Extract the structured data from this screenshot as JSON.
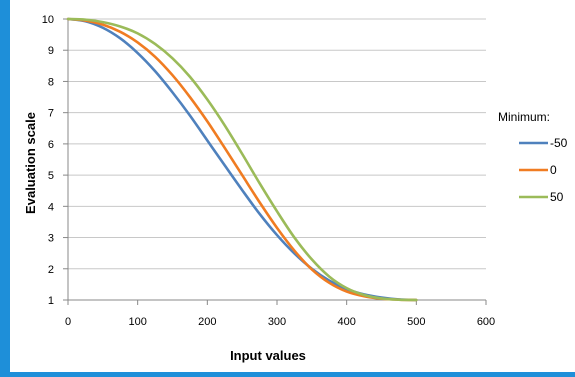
{
  "chart_data": {
    "type": "line",
    "title": "",
    "xlabel": "Input values",
    "ylabel": "Evaluation scale",
    "xlim": [
      0,
      600
    ],
    "ylim": [
      1,
      10
    ],
    "x_ticks": [
      "0",
      "100",
      "200",
      "300",
      "400",
      "500",
      "600"
    ],
    "y_ticks": [
      "1",
      "2",
      "3",
      "4",
      "5",
      "6",
      "7",
      "8",
      "9",
      "10"
    ],
    "grid": "horizontal",
    "legend": {
      "title": "Minimum:",
      "placement": "right"
    },
    "series": [
      {
        "name": "-50",
        "color": "#4f81bd",
        "x": [
          0,
          25,
          50,
          75,
          100,
          125,
          150,
          175,
          200,
          225,
          250,
          275,
          300,
          325,
          350,
          375,
          400,
          425,
          450,
          475,
          500
        ],
        "y": [
          10.0,
          9.93,
          9.72,
          9.38,
          8.91,
          8.33,
          7.65,
          6.91,
          6.11,
          5.31,
          4.52,
          3.76,
          3.08,
          2.49,
          2.0,
          1.62,
          1.35,
          1.18,
          1.08,
          1.02,
          1.0
        ]
      },
      {
        "name": "0",
        "color": "#f07c22",
        "x": [
          0,
          25,
          50,
          75,
          100,
          125,
          150,
          175,
          200,
          225,
          250,
          275,
          300,
          325,
          350,
          375,
          400,
          425,
          450,
          475,
          500
        ],
        "y": [
          10.0,
          9.95,
          9.82,
          9.59,
          9.25,
          8.79,
          8.2,
          7.5,
          6.72,
          5.87,
          5.0,
          4.13,
          3.31,
          2.58,
          1.98,
          1.55,
          1.27,
          1.12,
          1.04,
          1.01,
          1.0
        ]
      },
      {
        "name": "50",
        "color": "#9bbb59",
        "x": [
          0,
          25,
          50,
          75,
          100,
          125,
          150,
          175,
          200,
          225,
          250,
          275,
          300,
          325,
          350,
          375,
          400,
          425,
          450,
          475,
          500
        ],
        "y": [
          10.0,
          9.98,
          9.9,
          9.76,
          9.54,
          9.2,
          8.74,
          8.15,
          7.42,
          6.59,
          5.68,
          4.74,
          3.84,
          3.0,
          2.3,
          1.75,
          1.38,
          1.16,
          1.05,
          1.01,
          1.0
        ]
      }
    ]
  }
}
